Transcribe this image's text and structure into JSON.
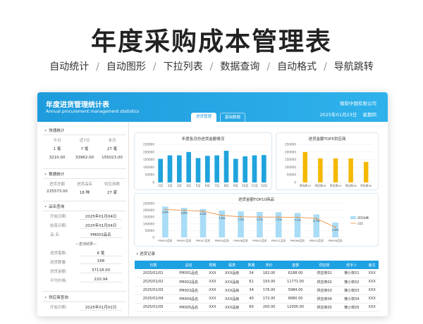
{
  "hero": {
    "title": "年度采购成本管理表",
    "features": [
      "自动统计",
      "自动图形",
      "下拉列表",
      "数据查询",
      "自动格式",
      "导航跳转"
    ]
  },
  "header": {
    "title": "年度进货管理统计表",
    "subtitle": "Annual procurement management statistics",
    "company": "微软中国有限公司",
    "date": "2025年01月23日",
    "weekday": "星期四",
    "tabs": [
      {
        "label": "进货管理"
      },
      {
        "label": "基础数据"
      }
    ]
  },
  "sidebar": {
    "quick_stats": {
      "title": "快速统计",
      "cols": [
        "今日",
        "近7日",
        "本月"
      ],
      "row1": [
        "1 笔",
        "7 笔",
        "27 笔"
      ],
      "row2": [
        "3210.00",
        "33962.00",
        "155023.00"
      ]
    },
    "data_stats": {
      "title": "数据统计",
      "cols": [
        "进货总额",
        "进货品名",
        "供应商数"
      ],
      "values": [
        "225573.00",
        "18 种",
        "27 家"
      ]
    },
    "product_query": {
      "title": "品名查询",
      "start_label": "开始日期:",
      "start_value": "2025年01月04日",
      "end_label": "结束日期:",
      "end_value": "2025年01月04日",
      "name_label": "品    名:",
      "name_value": "PM003品名",
      "result_title": "查询结果",
      "results": [
        {
          "label": "进货笔数:",
          "value": "6 笔"
        },
        {
          "label": "进货数量:",
          "value": "168"
        },
        {
          "label": "进货金额:",
          "value": "37118.00"
        },
        {
          "label": "平均价格:",
          "value": "220.94"
        }
      ]
    },
    "supplier_query": {
      "title": "供应商查询",
      "start_label": "开始日期:",
      "start_value": "2025年01月01日"
    }
  },
  "charts": {
    "monthly": {
      "title": "年度各月份进货金额情况",
      "type": "bar",
      "categories": [
        "1月",
        "2月",
        "3月",
        "4月",
        "5月",
        "6月",
        "7月",
        "8月",
        "9月",
        "10月",
        "11月",
        "12月"
      ],
      "values": [
        155023,
        178000,
        178000,
        200000,
        160000,
        175000,
        178000,
        208000,
        155000,
        172000,
        178000,
        180000
      ],
      "ylim": [
        0,
        250000
      ],
      "yticks": [
        "250000",
        "200000",
        "150000",
        "100000",
        "50000",
        "0"
      ],
      "color": "#1fa3dd"
    },
    "top5": {
      "title": "进货金额TOP5供应商",
      "type": "bar",
      "categories": [
        "供应商10",
        "供应商18",
        "供应商19",
        "供应商16",
        "供应商20"
      ],
      "values": [
        200000,
        158000,
        158000,
        158000,
        135000
      ],
      "ylim": [
        0,
        250000
      ],
      "yticks": [
        "250000",
        "200000",
        "150000",
        "100000",
        "50000",
        "0"
      ],
      "color": "#f5b800"
    },
    "top10": {
      "title": "进货金额TOP10商品",
      "type": "bar+line",
      "categories": [
        "PM005品名",
        "PM001品名",
        "PM007品名",
        "PM004品名",
        "PM008品名",
        "PM002品名",
        "PM011品名",
        "PM006品名",
        "PM010品名",
        "PM009品名"
      ],
      "values": [
        228000,
        218000,
        210000,
        198000,
        192000,
        188000,
        186000,
        180000,
        170000,
        110000
      ],
      "pct": [
        9.9,
        9.6,
        9.3,
        7.8,
        7.3,
        7.2,
        7.2,
        7.1,
        6.7,
        3.6
      ],
      "pct_labels": [
        "9.9%",
        "9.6%",
        "9.3%",
        "7.8%",
        "7.3%",
        "7.2%",
        "7.2%",
        "7.1%",
        "6.7%",
        "3.6%"
      ],
      "ylim": [
        0,
        250000
      ],
      "yticks": [
        "250000",
        "200000",
        "150000",
        "100000",
        "50000",
        "0"
      ],
      "legend": [
        "进货金额",
        "占比"
      ],
      "bar_color": "#a9dcf6",
      "line_color": "#f08c3c"
    }
  },
  "records": {
    "title": "进货记录",
    "columns": [
      "日期",
      "品名",
      "规格",
      "属类",
      "数量",
      "单价",
      "金额",
      "供应商",
      "经手人",
      "备注"
    ],
    "rows": [
      [
        "2025/01/01",
        "PM001品名",
        "XXX",
        "XXX品级",
        "34",
        "182.00",
        "6188.00",
        "供应商01",
        "微小软01",
        "XXX"
      ],
      [
        "2025/01/02",
        "PM002品名",
        "XXX",
        "XXX品级",
        "61",
        "193.00",
        "11771.00",
        "供应商02",
        "微小软02",
        "XXX"
      ],
      [
        "2025/01/03",
        "PM003品名",
        "XXX",
        "XXX品级",
        "34",
        "176.00",
        "5984.00",
        "供应商03",
        "微小软03",
        "XXX"
      ],
      [
        "2025/01/04",
        "PM004品名",
        "XXX",
        "XXX品级",
        "40",
        "172.00",
        "6880.00",
        "供应商04",
        "微小软04",
        "XXX"
      ],
      [
        "2025/01/05",
        "PM005品名",
        "XXX",
        "XXX品级",
        "60",
        "200.00",
        "12000.00",
        "供应商05",
        "微小软05",
        "XXX"
      ]
    ]
  }
}
